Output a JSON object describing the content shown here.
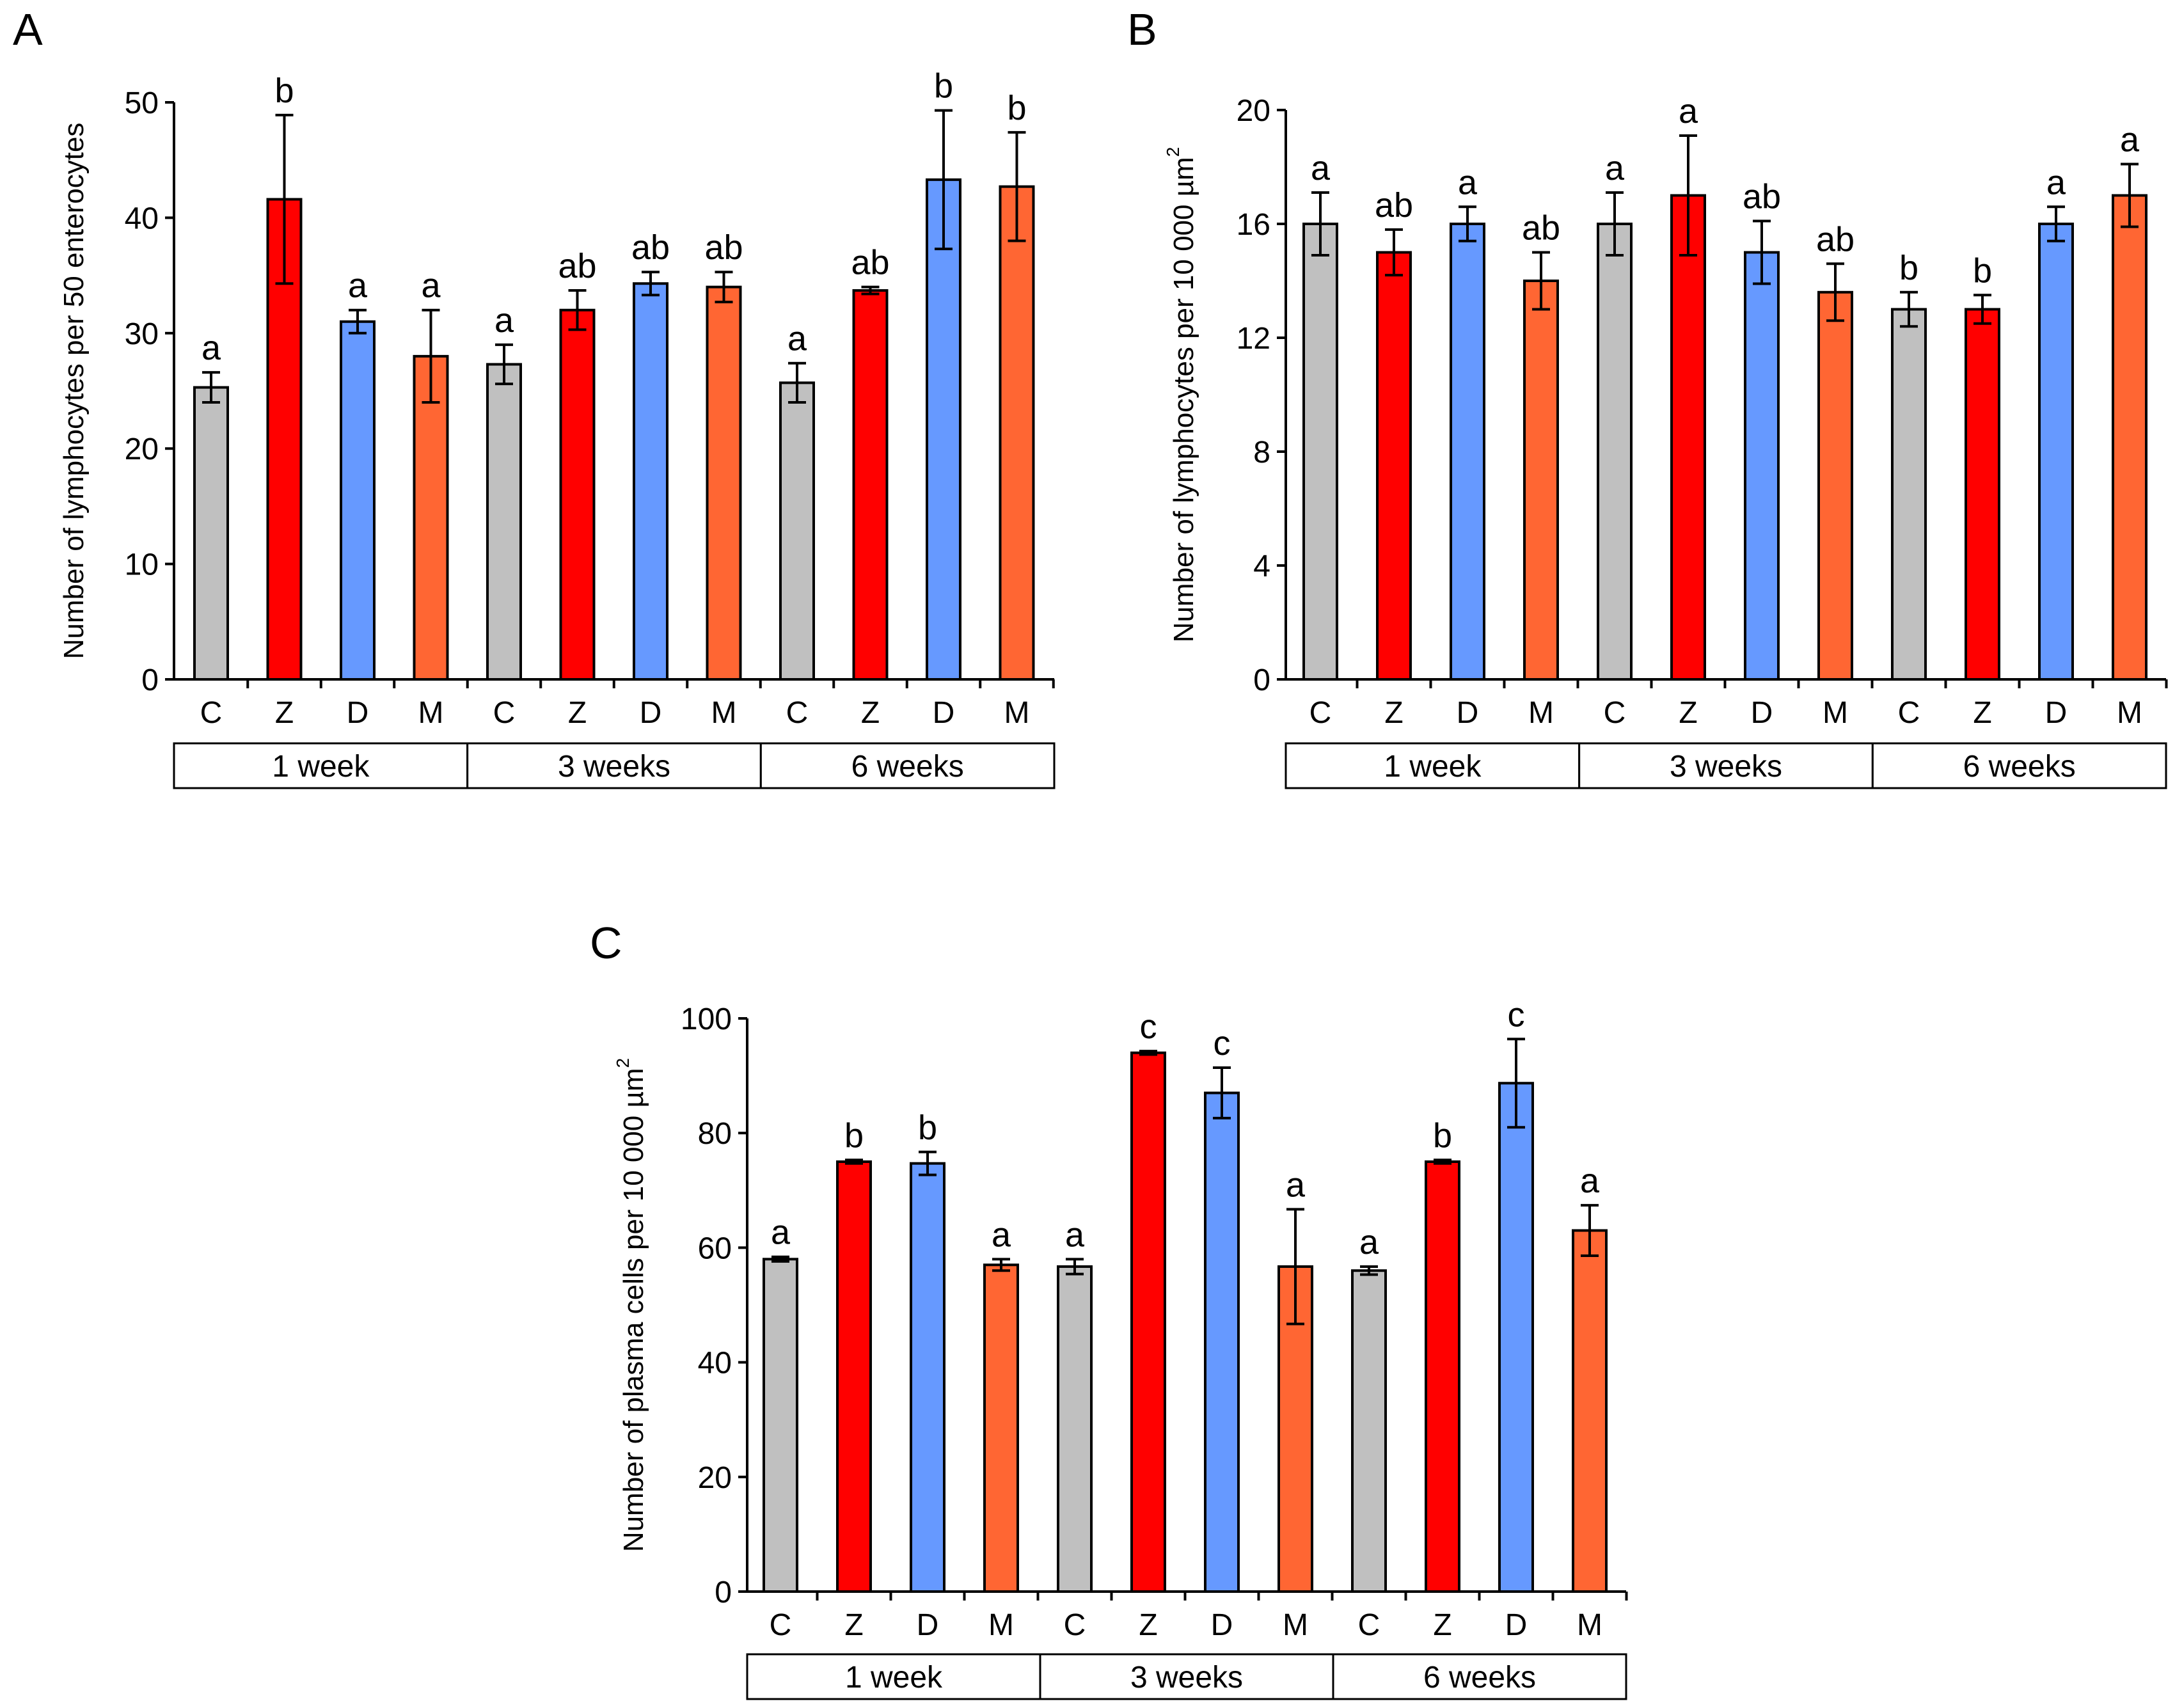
{
  "colors": {
    "C": "#c0c0c0",
    "Z": "#ff0000",
    "D": "#6699ff",
    "M": "#ff6633"
  },
  "chart_data": [
    {
      "id": "A",
      "panel_label": "A",
      "type": "bar",
      "ylabel": "Number of lymphocytes per 50 enterocytes",
      "ylim": [
        0,
        50
      ],
      "yticks": [
        0,
        10,
        20,
        30,
        40,
        50
      ],
      "categories": [
        "C",
        "Z",
        "D",
        "M",
        "C",
        "Z",
        "D",
        "M",
        "C",
        "Z",
        "D",
        "M"
      ],
      "groups": [
        "1 week",
        "3 weeks",
        "6 weeks"
      ],
      "values": [
        25.3,
        41.6,
        31.0,
        28.0,
        27.3,
        32.0,
        34.3,
        34.0,
        25.7,
        33.7,
        43.3,
        42.7
      ],
      "errors": [
        1.3,
        7.3,
        1.0,
        4.0,
        1.7,
        1.7,
        1.0,
        1.3,
        1.7,
        0.3,
        6.0,
        4.7
      ],
      "significance": [
        "a",
        "b",
        "a",
        "a",
        "a",
        "ab",
        "ab",
        "ab",
        "a",
        "ab",
        "b",
        "b"
      ]
    },
    {
      "id": "B",
      "panel_label": "B",
      "type": "bar",
      "ylabel": "Number of lymphocytes per 10 000 µm",
      "ylabel_sup": "2",
      "ylim": [
        0,
        20
      ],
      "yticks": [
        0,
        4,
        8,
        12,
        16,
        20
      ],
      "categories": [
        "C",
        "Z",
        "D",
        "M",
        "C",
        "Z",
        "D",
        "M",
        "C",
        "Z",
        "D",
        "M"
      ],
      "groups": [
        "1 week",
        "3 weeks",
        "6 weeks"
      ],
      "values": [
        16.0,
        15.0,
        16.0,
        14.0,
        16.0,
        17.0,
        15.0,
        13.6,
        13.0,
        13.0,
        16.0,
        17.0
      ],
      "errors": [
        1.1,
        0.8,
        0.6,
        1.0,
        1.1,
        2.1,
        1.1,
        1.0,
        0.6,
        0.5,
        0.6,
        1.1
      ],
      "significance": [
        "a",
        "ab",
        "a",
        "ab",
        "a",
        "a",
        "ab",
        "ab",
        "b",
        "b",
        "a",
        "a"
      ]
    },
    {
      "id": "C",
      "panel_label": "C",
      "type": "bar",
      "ylabel": "Number of plasma cells per 10 000 µm",
      "ylabel_sup": "2",
      "ylim": [
        0,
        100
      ],
      "yticks": [
        0,
        20,
        40,
        60,
        80,
        100
      ],
      "categories": [
        "C",
        "Z",
        "D",
        "M",
        "C",
        "Z",
        "D",
        "M",
        "C",
        "Z",
        "D",
        "M"
      ],
      "groups": [
        "1 week",
        "3 weeks",
        "6 weeks"
      ],
      "values": [
        58.0,
        75.0,
        74.7,
        57.0,
        56.7,
        94.0,
        87.0,
        56.7,
        56.0,
        75.0,
        88.7,
        63.0
      ],
      "errors": [
        0.4,
        0.3,
        2.0,
        1.0,
        1.3,
        0.3,
        4.4,
        10.0,
        0.7,
        0.3,
        7.7,
        4.4
      ],
      "significance": [
        "a",
        "b",
        "b",
        "a",
        "a",
        "c",
        "c",
        "a",
        "a",
        "b",
        "c",
        "a"
      ]
    }
  ]
}
